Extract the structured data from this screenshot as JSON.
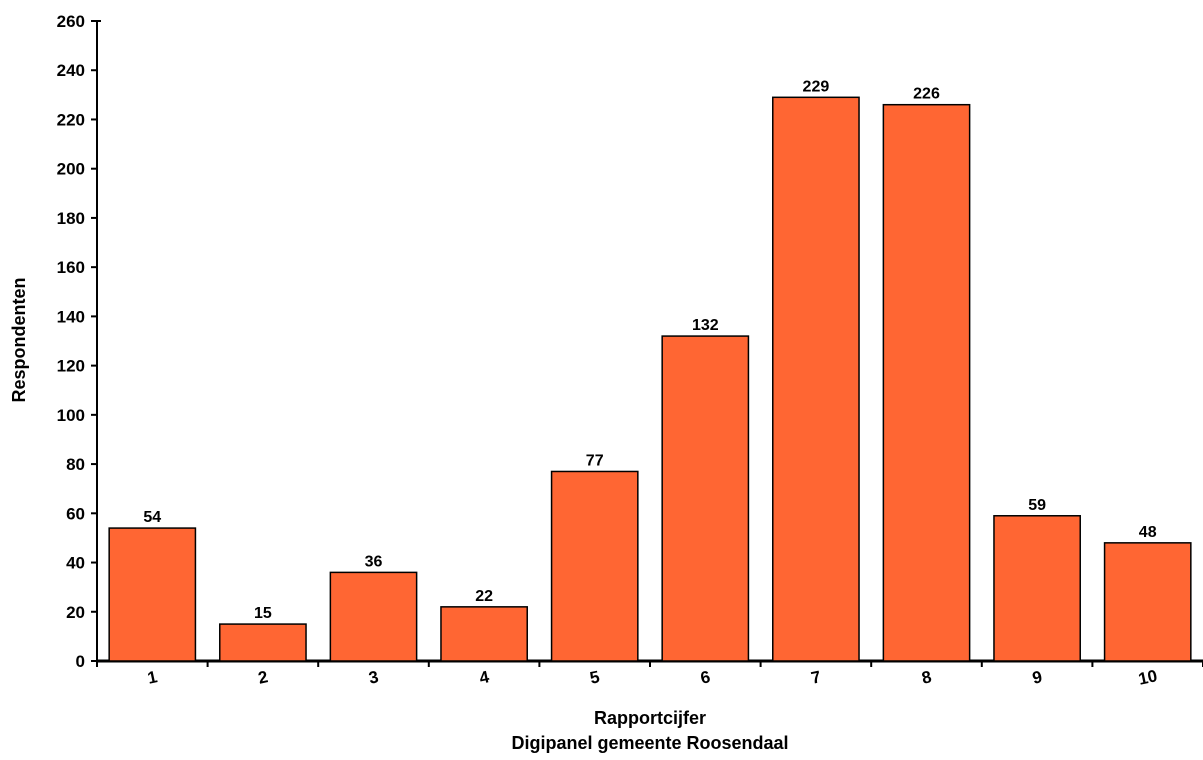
{
  "chart_data": {
    "type": "bar",
    "categories": [
      "1",
      "2",
      "3",
      "4",
      "5",
      "6",
      "7",
      "8",
      "9",
      "10"
    ],
    "values": [
      54,
      15,
      36,
      22,
      77,
      132,
      229,
      226,
      59,
      48
    ],
    "xlabel": "Rapportcijfer",
    "subtitle": "Digipanel gemeente Roosendaal",
    "ylabel": "Respondenten",
    "ylim": [
      0,
      260
    ],
    "yticks": [
      0,
      20,
      40,
      60,
      80,
      100,
      120,
      140,
      160,
      180,
      200,
      220,
      240,
      260
    ],
    "grid": false,
    "legend": "none",
    "bar_color": "#ff6633",
    "bar_edge_color": "#000000"
  }
}
